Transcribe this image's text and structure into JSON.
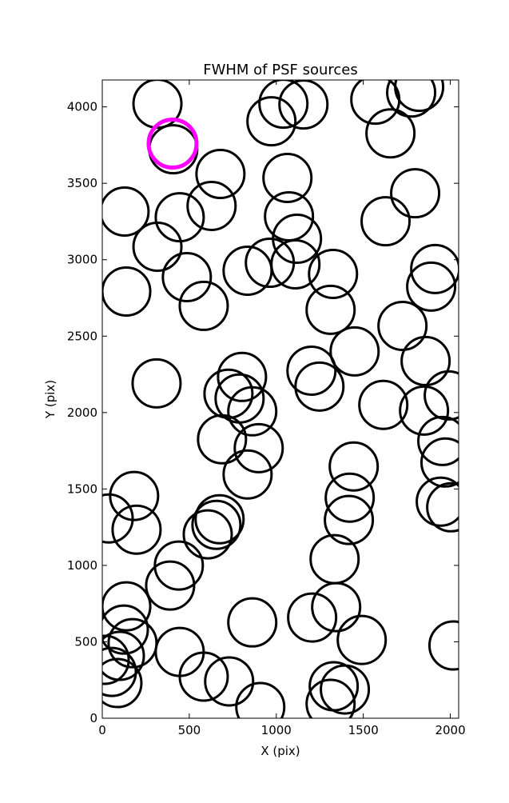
{
  "chart_data": {
    "type": "scatter",
    "title": "FWHM of PSF sources",
    "x_label": "X (pix)",
    "y_label": "Y (pix)",
    "xlim": [
      0,
      2048
    ],
    "ylim": [
      0,
      4176
    ],
    "xticks": [
      0,
      500,
      1000,
      1500,
      2000
    ],
    "yticks": [
      0,
      500,
      1000,
      1500,
      2000,
      2500,
      3000,
      3500,
      4000
    ],
    "grid": false,
    "series": [
      {
        "color": "#000000",
        "linewidth": 3,
        "x": [
          317,
          408,
          1041,
          972,
          1156,
          1569,
          1656,
          1775,
          1821,
          679,
          1064,
          128,
          445,
          628,
          1073,
          1119,
          1628,
          1798,
          317,
          486,
          835,
          963,
          1110,
          1326,
          1913,
          1890,
          138,
          583,
          1312,
          1450,
          1725,
          1858,
          312,
          803,
          725,
          789,
          862,
          1202,
          1248,
          1615,
          1849,
          1991,
          1954,
          1972,
          688,
          899,
          835,
          1445,
          1422,
          1417,
          183,
          37,
          197,
          674,
          656,
          606,
          1945,
          2005,
          440,
          390,
          1335,
          138,
          124,
          174,
          101,
          55,
          87,
          14,
          445,
          583,
          729,
          862,
          908,
          1206,
          1344,
          1491,
          2018,
          1330,
          1394,
          1312
        ],
        "values": [
          4021,
          3723,
          4021,
          3906,
          4016,
          4047,
          3827,
          4094,
          4131,
          3561,
          3535,
          3315,
          3278,
          3352,
          3284,
          3137,
          3252,
          3435,
          3085,
          2886,
          2928,
          2980,
          2970,
          2907,
          2939,
          2824,
          2792,
          2698,
          2672,
          2400,
          2567,
          2337,
          2191,
          2233,
          2123,
          2092,
          2008,
          2274,
          2170,
          2050,
          2013,
          2112,
          1814,
          1673,
          1825,
          1767,
          1595,
          1647,
          1443,
          1297,
          1454,
          1307,
          1234,
          1302,
          1265,
          1203,
          1417,
          1380,
          999,
          868,
          1041,
          732,
          580,
          491,
          408,
          303,
          230,
          382,
          434,
          272,
          241,
          627,
          73,
          659,
          727,
          512,
          476,
          209,
          188,
          94
        ]
      },
      {
        "color": "#ff00ff",
        "linewidth": 5,
        "x": [
          404
        ],
        "values": [
          3760
        ]
      }
    ]
  }
}
